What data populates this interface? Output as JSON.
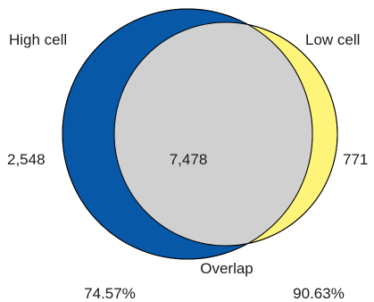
{
  "venn": {
    "set_a": {
      "label": "High cell",
      "only_count": "2,548",
      "percent": "74.57%"
    },
    "set_b": {
      "label": "Low cell",
      "only_count": "771",
      "percent": "90.63%"
    },
    "intersection": {
      "label": "Overlap",
      "count": "7,478"
    }
  },
  "colors": {
    "set_a_fill": "#0858a8",
    "set_b_fill": "#fff47a",
    "overlap_fill": "#d0d0d0",
    "outline": "#000000"
  }
}
